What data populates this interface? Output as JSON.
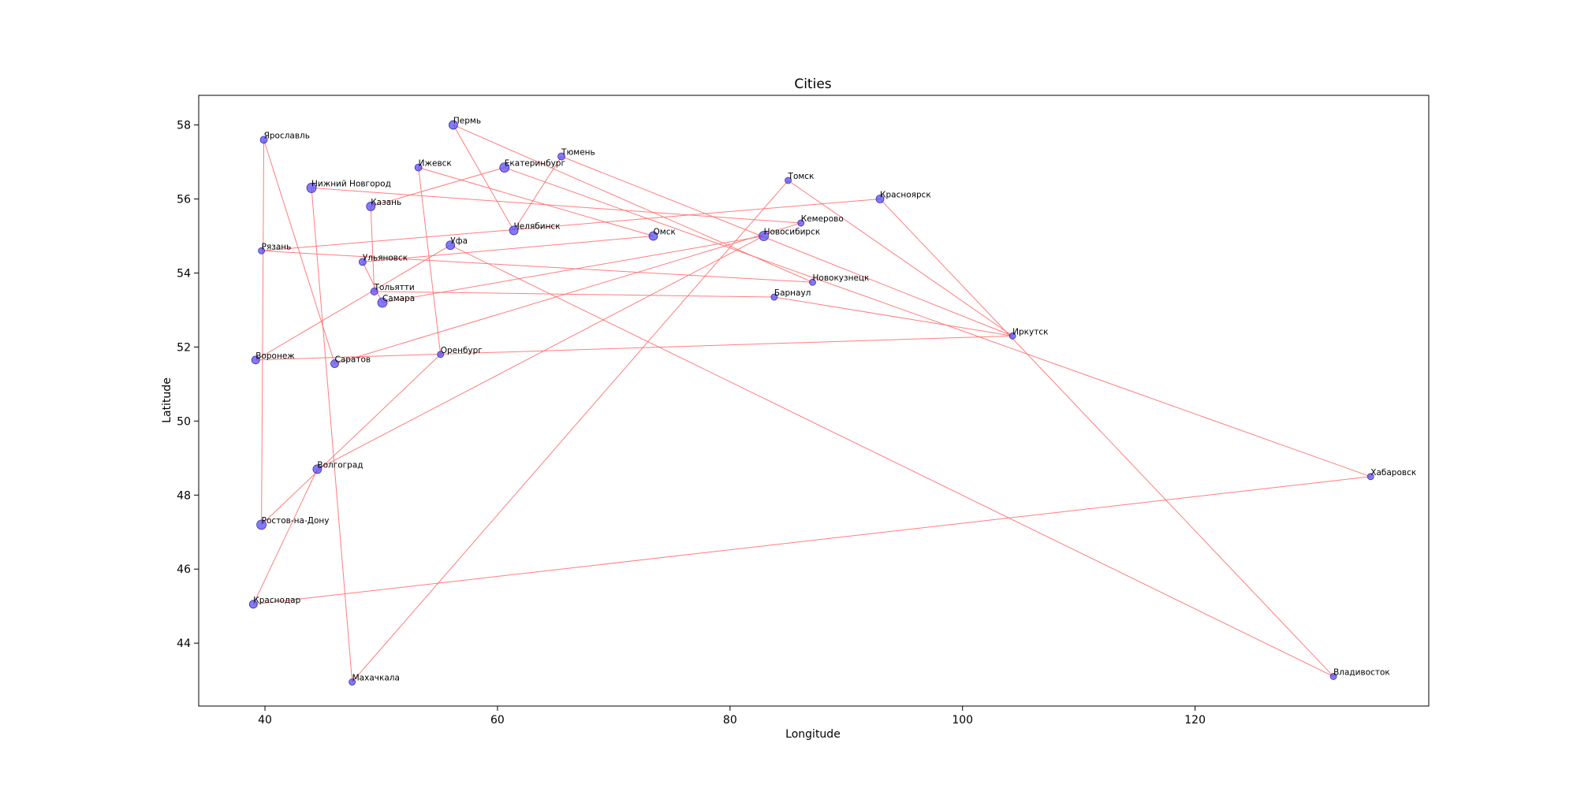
{
  "chart_data": {
    "type": "scatter",
    "title": "Cities",
    "xlabel": "Longitude",
    "ylabel": "Latitude",
    "xlim": [
      34.3,
      140.1
    ],
    "ylim": [
      42.3,
      58.8
    ],
    "x_ticks": [
      40,
      60,
      80,
      100,
      120
    ],
    "y_ticks": [
      44,
      46,
      48,
      50,
      52,
      54,
      56,
      58
    ],
    "grid": false,
    "marker_color": "#5b4ff5",
    "line_color": "#ff6f6f",
    "points": [
      {
        "name": "Пермь",
        "lon": 56.2,
        "lat": 58.0,
        "size": 9
      },
      {
        "name": "Ярославль",
        "lon": 39.9,
        "lat": 57.6,
        "size": 7
      },
      {
        "name": "Тюмень",
        "lon": 65.5,
        "lat": 57.15,
        "size": 7
      },
      {
        "name": "Ижевск",
        "lon": 53.2,
        "lat": 56.85,
        "size": 7
      },
      {
        "name": "Екатеринбург",
        "lon": 60.6,
        "lat": 56.85,
        "size": 10
      },
      {
        "name": "Томск",
        "lon": 85.0,
        "lat": 56.5,
        "size": 6
      },
      {
        "name": "Нижний Новгород",
        "lon": 44.0,
        "lat": 56.3,
        "size": 10
      },
      {
        "name": "Красноярск",
        "lon": 92.9,
        "lat": 56.0,
        "size": 8
      },
      {
        "name": "Казань",
        "lon": 49.1,
        "lat": 55.8,
        "size": 9
      },
      {
        "name": "Кемерово",
        "lon": 86.1,
        "lat": 55.35,
        "size": 6
      },
      {
        "name": "Челябинск",
        "lon": 61.4,
        "lat": 55.15,
        "size": 9
      },
      {
        "name": "Омск",
        "lon": 73.4,
        "lat": 55.0,
        "size": 9
      },
      {
        "name": "Новосибирск",
        "lon": 82.9,
        "lat": 55.0,
        "size": 10
      },
      {
        "name": "Уфа",
        "lon": 55.95,
        "lat": 54.75,
        "size": 9
      },
      {
        "name": "Рязань",
        "lon": 39.7,
        "lat": 54.6,
        "size": 6
      },
      {
        "name": "Ульяновск",
        "lon": 48.4,
        "lat": 54.3,
        "size": 7
      },
      {
        "name": "Новокузнецк",
        "lon": 87.1,
        "lat": 53.75,
        "size": 6
      },
      {
        "name": "Тольятти",
        "lon": 49.4,
        "lat": 53.5,
        "size": 7
      },
      {
        "name": "Барнаул",
        "lon": 83.8,
        "lat": 53.35,
        "size": 6
      },
      {
        "name": "Самара",
        "lon": 50.1,
        "lat": 53.2,
        "size": 10
      },
      {
        "name": "Иркутск",
        "lon": 104.3,
        "lat": 52.3,
        "size": 6
      },
      {
        "name": "Оренбург",
        "lon": 55.1,
        "lat": 51.8,
        "size": 6
      },
      {
        "name": "Воронеж",
        "lon": 39.2,
        "lat": 51.65,
        "size": 8
      },
      {
        "name": "Саратов",
        "lon": 46.0,
        "lat": 51.55,
        "size": 8
      },
      {
        "name": "Волгоград",
        "lon": 44.5,
        "lat": 48.7,
        "size": 9
      },
      {
        "name": "Хабаровск",
        "lon": 135.1,
        "lat": 48.5,
        "size": 6
      },
      {
        "name": "Ростов-на-Дону",
        "lon": 39.7,
        "lat": 47.2,
        "size": 10
      },
      {
        "name": "Краснодар",
        "lon": 39.0,
        "lat": 45.05,
        "size": 8
      },
      {
        "name": "Владивосток",
        "lon": 131.9,
        "lat": 43.1,
        "size": 6
      },
      {
        "name": "Махачкала",
        "lon": 47.5,
        "lat": 42.95,
        "size": 6
      }
    ],
    "route": [
      "Махачкала",
      "Нижний Новгород",
      "Кемерово",
      "Саратов",
      "Ярославль",
      "Ростов-на-Дону",
      "Оренбург",
      "Ижевск",
      "Омск",
      "Ульяновск",
      "Самара",
      "Новосибирск",
      "Волгоград",
      "Краснодар",
      "Хабаровск",
      "Екатеринбург",
      "Казань",
      "Тольятти",
      "Барнаул",
      "Иркутск",
      "Воронеж",
      "Уфа",
      "Владивосток",
      "Красноярск",
      "Рязань",
      "Новокузнецк",
      "Пермь",
      "Челябинск",
      "Тюмень",
      "Иркутск",
      "Томск",
      "Махачкала"
    ]
  }
}
